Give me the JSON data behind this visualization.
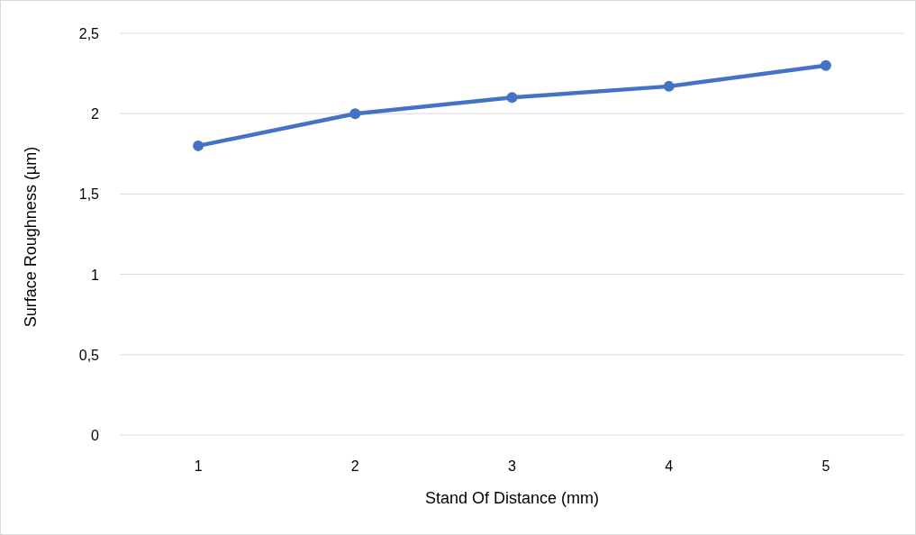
{
  "chart_data": {
    "type": "line",
    "xlabel": "Stand Of Distance (mm)",
    "ylabel": "Surface Roughness (µm)",
    "categories": [
      "1",
      "2",
      "3",
      "4",
      "5"
    ],
    "series": [
      {
        "color": "#4472c4",
        "values": [
          1.8,
          2.0,
          2.1,
          2.17,
          2.3
        ]
      }
    ],
    "ylim": [
      0,
      2.5
    ],
    "yticks": [
      0,
      {
        "value": 0.5,
        "label": "0,5"
      },
      1,
      {
        "value": 1.5,
        "label": "1,5"
      },
      2,
      {
        "value": 2.5,
        "label": "2,5"
      }
    ],
    "grid": "y",
    "marker": "circle",
    "line_style": "solid"
  }
}
